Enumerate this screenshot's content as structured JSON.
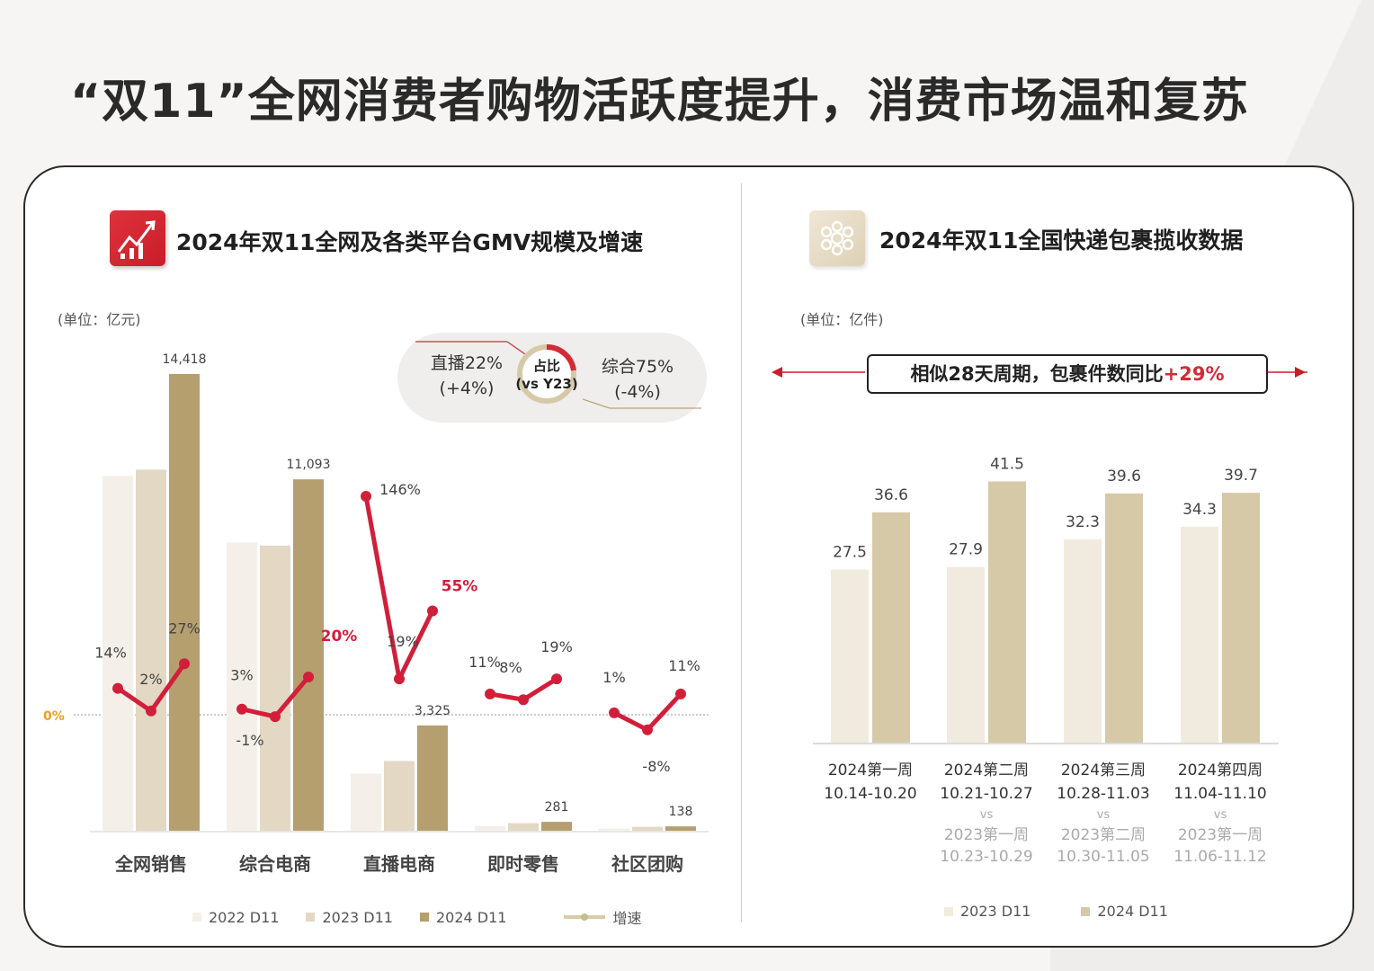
{
  "page": {
    "title": "“双11”全网消费者购物活跃度提升，消费市场温和复苏"
  },
  "left_panel": {
    "title": "2024年双11全网及各类平台GMV规模及增速",
    "unit": "(单位：亿元)",
    "share": {
      "left_line1": "直播22%",
      "left_line2": "(+4%)",
      "center_line1": "占比",
      "center_line2": "(vs Y23)",
      "right_line1": "综合75%",
      "right_line2": "(-4%)"
    },
    "legend": [
      "2022 D11",
      "2023 D11",
      "2024 D11",
      "增速"
    ]
  },
  "right_panel": {
    "title": "2024年双11全国快递包裹揽收数据",
    "unit": "(单位：亿件)",
    "callout_text": "相似28天周期，包裹件数同比",
    "callout_value": "+29%",
    "legend": [
      "2023 D11",
      "2024 D11"
    ]
  },
  "colors": {
    "bar_2022": "#f4f0e9",
    "bar_2023": "#e2d8c4",
    "bar_2024": "#b59f6f",
    "growth_line": "#d11f3a",
    "parcel_2023": "#f1ebdf",
    "parcel_2024": "#d6c9a8",
    "zero_label": "#e8a020"
  },
  "chart_data": [
    {
      "type": "bar",
      "categories": [
        "全网销售",
        "综合电商",
        "直播电商",
        "即时零售",
        "社区团购"
      ],
      "series": [
        {
          "name": "2022 D11",
          "values": [
            11200,
            9100,
            1800,
            150,
            70
          ]
        },
        {
          "name": "2023 D11",
          "values": [
            11400,
            9000,
            2200,
            240,
            125
          ]
        },
        {
          "name": "2024 D11",
          "values": [
            14418,
            11093,
            3325,
            281,
            138
          ]
        }
      ],
      "data_labels": [
        "14,418",
        "11,093",
        "3,325",
        "281",
        "138"
      ],
      "growth": {
        "name": "增速",
        "values": [
          [
            14,
            2,
            27
          ],
          [
            3,
            -1,
            20
          ],
          [
            146,
            19,
            55
          ],
          [
            11,
            8,
            19
          ],
          [
            1,
            -8,
            11
          ]
        ],
        "labels": [
          [
            "14%",
            "2%",
            "27%"
          ],
          [
            "3%",
            "-1%",
            "20%"
          ],
          [
            "146%",
            "19%",
            "55%"
          ],
          [
            "11%",
            "8%",
            "19%"
          ],
          [
            "1%",
            "-8%",
            "11%"
          ]
        ],
        "highlighted": [
          "20%",
          "55%"
        ],
        "zero_label": "0%"
      },
      "ylim": [
        0,
        16000
      ]
    },
    {
      "type": "bar",
      "categories": [
        [
          "2024第一周",
          "10.14-10.20"
        ],
        [
          "2024第二周",
          "10.21-10.27",
          "vs",
          "2023第一周",
          "10.23-10.29"
        ],
        [
          "2024第三周",
          "10.28-11.03",
          "vs",
          "2023第二周",
          "10.30-11.05"
        ],
        [
          "2024第四周",
          "11.04-11.10",
          "vs",
          "2023第一周",
          "11.06-11.12"
        ]
      ],
      "series": [
        {
          "name": "2023 D11",
          "values": [
            27.5,
            27.9,
            32.3,
            34.3
          ]
        },
        {
          "name": "2024 D11",
          "values": [
            36.6,
            41.5,
            39.6,
            39.7
          ]
        }
      ],
      "ylim": [
        0,
        45
      ]
    }
  ]
}
